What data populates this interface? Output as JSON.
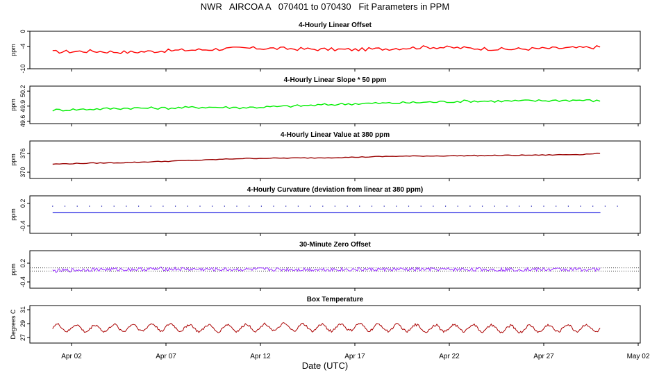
{
  "title": "NWR   AIRCOA A   070401 to 070430   Fit Parameters in PPM",
  "xlabel": "Date (UTC)",
  "x_ticks": [
    "Apr 02",
    "Apr 07",
    "Apr 12",
    "Apr 17",
    "Apr 22",
    "Apr 27",
    "May 02"
  ],
  "chart_data": [
    {
      "type": "line",
      "title": "4-Hourly Linear Offset",
      "ylabel": "ppm",
      "yticks": [
        "0",
        "-4",
        "-10"
      ],
      "ylim": [
        -10,
        0
      ],
      "color": "#ff0000",
      "series": [
        {
          "x": [
            "Apr 01",
            "Apr 03",
            "Apr 05",
            "Apr 07",
            "Apr 09",
            "Apr 11",
            "Apr 13",
            "Apr 15",
            "Apr 17",
            "Apr 19",
            "Apr 21",
            "Apr 23",
            "Apr 25",
            "Apr 27",
            "Apr 29",
            "Apr 30"
          ],
          "values": [
            -5.5,
            -5.3,
            -5.6,
            -5.2,
            -4.9,
            -4.5,
            -4.6,
            -4.8,
            -4.9,
            -4.6,
            -4.2,
            -4.5,
            -4.8,
            -4.6,
            -4.4,
            -4.2
          ]
        }
      ]
    },
    {
      "type": "line",
      "title": "4-Hourly Linear Slope * 50 ppm",
      "ylabel": "ppm",
      "yticks": [
        "50.2",
        "49.9",
        "49.6"
      ],
      "ylim": [
        49.55,
        50.3
      ],
      "color": "#00ee00",
      "series": [
        {
          "x": [
            "Apr 01",
            "Apr 03",
            "Apr 05",
            "Apr 07",
            "Apr 09",
            "Apr 11",
            "Apr 13",
            "Apr 15",
            "Apr 17",
            "Apr 19",
            "Apr 21",
            "Apr 23",
            "Apr 25",
            "Apr 27",
            "Apr 29",
            "Apr 30"
          ],
          "values": [
            49.82,
            49.84,
            49.86,
            49.86,
            49.88,
            49.87,
            49.89,
            49.92,
            49.95,
            49.96,
            49.98,
            50.0,
            50.0,
            50.01,
            50.02,
            50.0
          ]
        }
      ]
    },
    {
      "type": "line",
      "title": "4-Hourly Linear Value at 380 ppm",
      "ylabel": "ppm",
      "yticks": [
        "376",
        "370"
      ],
      "ylim": [
        368,
        380
      ],
      "color": "#990000",
      "series": [
        {
          "x": [
            "Apr 01",
            "Apr 03",
            "Apr 05",
            "Apr 07",
            "Apr 09",
            "Apr 11",
            "Apr 13",
            "Apr 15",
            "Apr 17",
            "Apr 19",
            "Apr 21",
            "Apr 23",
            "Apr 25",
            "Apr 27",
            "Apr 29",
            "Apr 30"
          ],
          "values": [
            372.6,
            372.9,
            373.1,
            373.5,
            373.9,
            374.4,
            374.5,
            374.6,
            374.8,
            375.1,
            375.2,
            375.3,
            375.4,
            375.5,
            375.7,
            376.1
          ]
        }
      ]
    },
    {
      "type": "line",
      "title": "4-Hourly Curvature (deviation from linear at 380 ppm)",
      "ylabel": "ppm",
      "yticks": [
        "0.2",
        "-0.4"
      ],
      "ylim": [
        -0.6,
        0.4
      ],
      "color": "#0000dd",
      "series": [
        {
          "x": [
            "Apr 01",
            "Apr 30"
          ],
          "values": [
            -0.05,
            -0.05
          ]
        }
      ]
    },
    {
      "type": "line",
      "title": "30-Minute Zero Offset",
      "ylabel": "ppm",
      "yticks": [
        "0.2",
        "-0.4"
      ],
      "ylim": [
        -0.6,
        0.6
      ],
      "color": "#9933ff",
      "reference_lines": [
        0.05,
        -0.05
      ],
      "series": [
        {
          "x": [
            "Apr 01",
            "Apr 03",
            "Apr 05",
            "Apr 07",
            "Apr 09",
            "Apr 11",
            "Apr 13",
            "Apr 15",
            "Apr 17",
            "Apr 19",
            "Apr 21",
            "Apr 23",
            "Apr 25",
            "Apr 27",
            "Apr 29",
            "Apr 30"
          ],
          "values": [
            -0.05,
            0.0,
            0.0,
            0.02,
            0.0,
            0.0,
            0.0,
            0.0,
            0.0,
            0.0,
            0.0,
            0.0,
            0.0,
            0.0,
            0.0,
            0.0
          ]
        }
      ]
    },
    {
      "type": "line",
      "title": "Box Temperature",
      "ylabel": "Degrees C",
      "yticks": [
        "31",
        "29",
        "27"
      ],
      "ylim": [
        26.2,
        31.6
      ],
      "color": "#aa0000",
      "series": [
        {
          "x": [
            "Apr 01",
            "Apr 03",
            "Apr 05",
            "Apr 07",
            "Apr 09",
            "Apr 11",
            "Apr 13",
            "Apr 15",
            "Apr 17",
            "Apr 19",
            "Apr 21",
            "Apr 23",
            "Apr 25",
            "Apr 27",
            "Apr 29",
            "Apr 30"
          ],
          "values": [
            28.4,
            28.3,
            28.4,
            28.5,
            28.3,
            28.4,
            28.5,
            28.4,
            28.5,
            28.4,
            28.3,
            28.4,
            28.2,
            28.3,
            28.4,
            28.3
          ]
        }
      ]
    }
  ]
}
